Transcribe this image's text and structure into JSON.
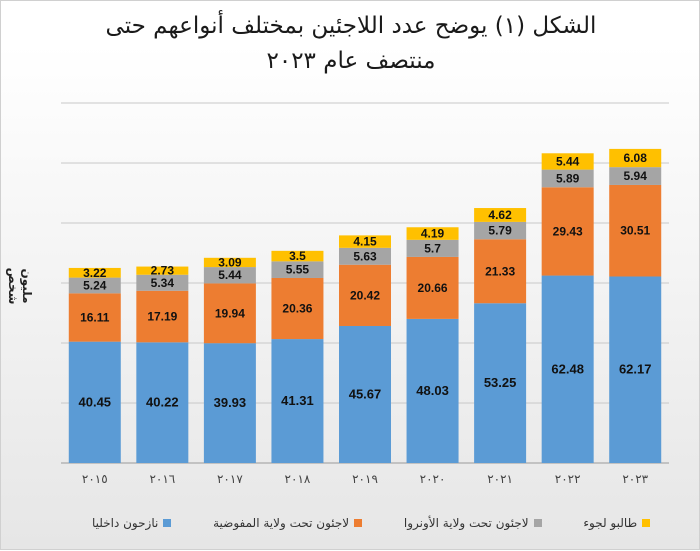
{
  "chart_data": {
    "type": "stacked-bar",
    "title": [
      "الشكل (١) يوضح عدد اللاجئين بمختلف أنواعهم حتى",
      "منتصف عام ٢٠٢٣"
    ],
    "ylabel": "مليون شخص",
    "categories": [
      "٢٠١٥",
      "٢٠١٦",
      "٢٠١٧",
      "٢٠١٨",
      "٢٠١٩",
      "٢٠٢٠",
      "٢٠٢١",
      "٢٠٢٢",
      "٢٠٢٣"
    ],
    "series": [
      {
        "name": "نازحون داخليا",
        "color": "#5b9bd5",
        "values": [
          40.45,
          40.22,
          39.93,
          41.31,
          45.67,
          48.03,
          53.25,
          62.48,
          62.17
        ]
      },
      {
        "name": "لاجئون تحت ولاية المفوضية",
        "color": "#ed7d31",
        "values": [
          16.11,
          17.19,
          19.94,
          20.36,
          20.42,
          20.66,
          21.33,
          29.43,
          30.51
        ]
      },
      {
        "name": "لاجئون تحت ولاية الأونروا",
        "color": "#a5a5a5",
        "values": [
          5.24,
          5.34,
          5.44,
          5.55,
          5.63,
          5.7,
          5.79,
          5.89,
          5.94
        ]
      },
      {
        "name": "طالبو لجوء",
        "color": "#ffc000",
        "values": [
          3.22,
          2.73,
          3.09,
          3.5,
          4.15,
          4.19,
          4.62,
          5.44,
          6.08
        ]
      }
    ],
    "ylim": [
      0,
      120
    ],
    "grid": true,
    "legend": "bottom"
  }
}
